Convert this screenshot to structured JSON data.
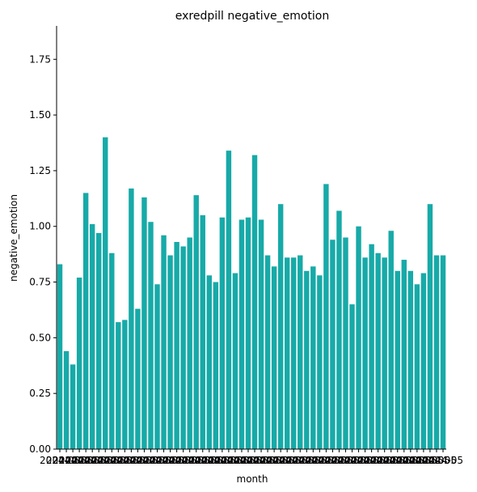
{
  "chart_data": {
    "type": "bar",
    "title": "exredpill negative_emotion",
    "xlabel": "month",
    "ylabel": "negative_emotion",
    "ylim": [
      0,
      1.9
    ],
    "yticks": [
      0.0,
      0.25,
      0.5,
      0.75,
      1.0,
      1.25,
      1.5,
      1.75
    ],
    "ytick_labels": [
      "0.00",
      "0.25",
      "0.50",
      "0.75",
      "1.00",
      "1.25",
      "1.50",
      "1.75"
    ],
    "bar_color": "#17aaa8",
    "grid": false,
    "values": [
      0.83,
      0.44,
      0.38,
      0.77,
      1.15,
      1.01,
      0.97,
      1.4,
      0.88,
      0.57,
      0.58,
      1.17,
      0.63,
      1.13,
      1.02,
      0.74,
      0.96,
      0.87,
      0.93,
      0.91,
      0.95,
      1.14,
      1.05,
      0.78,
      0.75,
      1.04,
      1.34,
      0.79,
      1.03,
      1.04,
      1.32,
      1.03,
      0.87,
      0.82,
      1.1,
      0.86,
      0.86,
      0.87,
      0.8,
      0.82,
      0.78,
      1.19,
      0.94,
      1.07,
      0.95,
      0.65,
      1.0,
      0.86,
      0.92,
      0.88,
      0.86,
      0.98,
      0.8,
      0.85,
      0.8,
      0.74,
      0.79,
      1.1,
      0.87,
      0.87
    ],
    "xtick_labels": [
      "2024-05",
      "2024-05",
      "2024-05",
      "2024-05",
      "2024-05",
      "2024-05",
      "2024-05",
      "2024-05",
      "2024-05",
      "2024-05",
      "2024-05",
      "2024-05",
      "2024-05",
      "2024-05",
      "2024-05",
      "2024-05",
      "2024-05",
      "2024-05",
      "2024-05",
      "2024-05",
      "2024-05",
      "2024-05",
      "2024-05",
      "2024-05",
      "2024-05",
      "2024-05",
      "2024-05",
      "2024-05",
      "2024-05",
      "2024-05",
      "2024-05",
      "2024-05",
      "2024-05",
      "2024-05",
      "2024-05",
      "2024-05",
      "2024-05",
      "2024-05",
      "2024-05",
      "2024-05",
      "2024-05",
      "2024-05",
      "2024-05",
      "2024-05",
      "2024-05",
      "2024-05",
      "2024-05",
      "2024-05",
      "2024-05",
      "2024-05",
      "2024-05",
      "2024-05",
      "2024-05",
      "2024-05",
      "2024-05",
      "2024-05",
      "2024-05",
      "2024-05",
      "2024-05",
      "2024-05"
    ]
  }
}
